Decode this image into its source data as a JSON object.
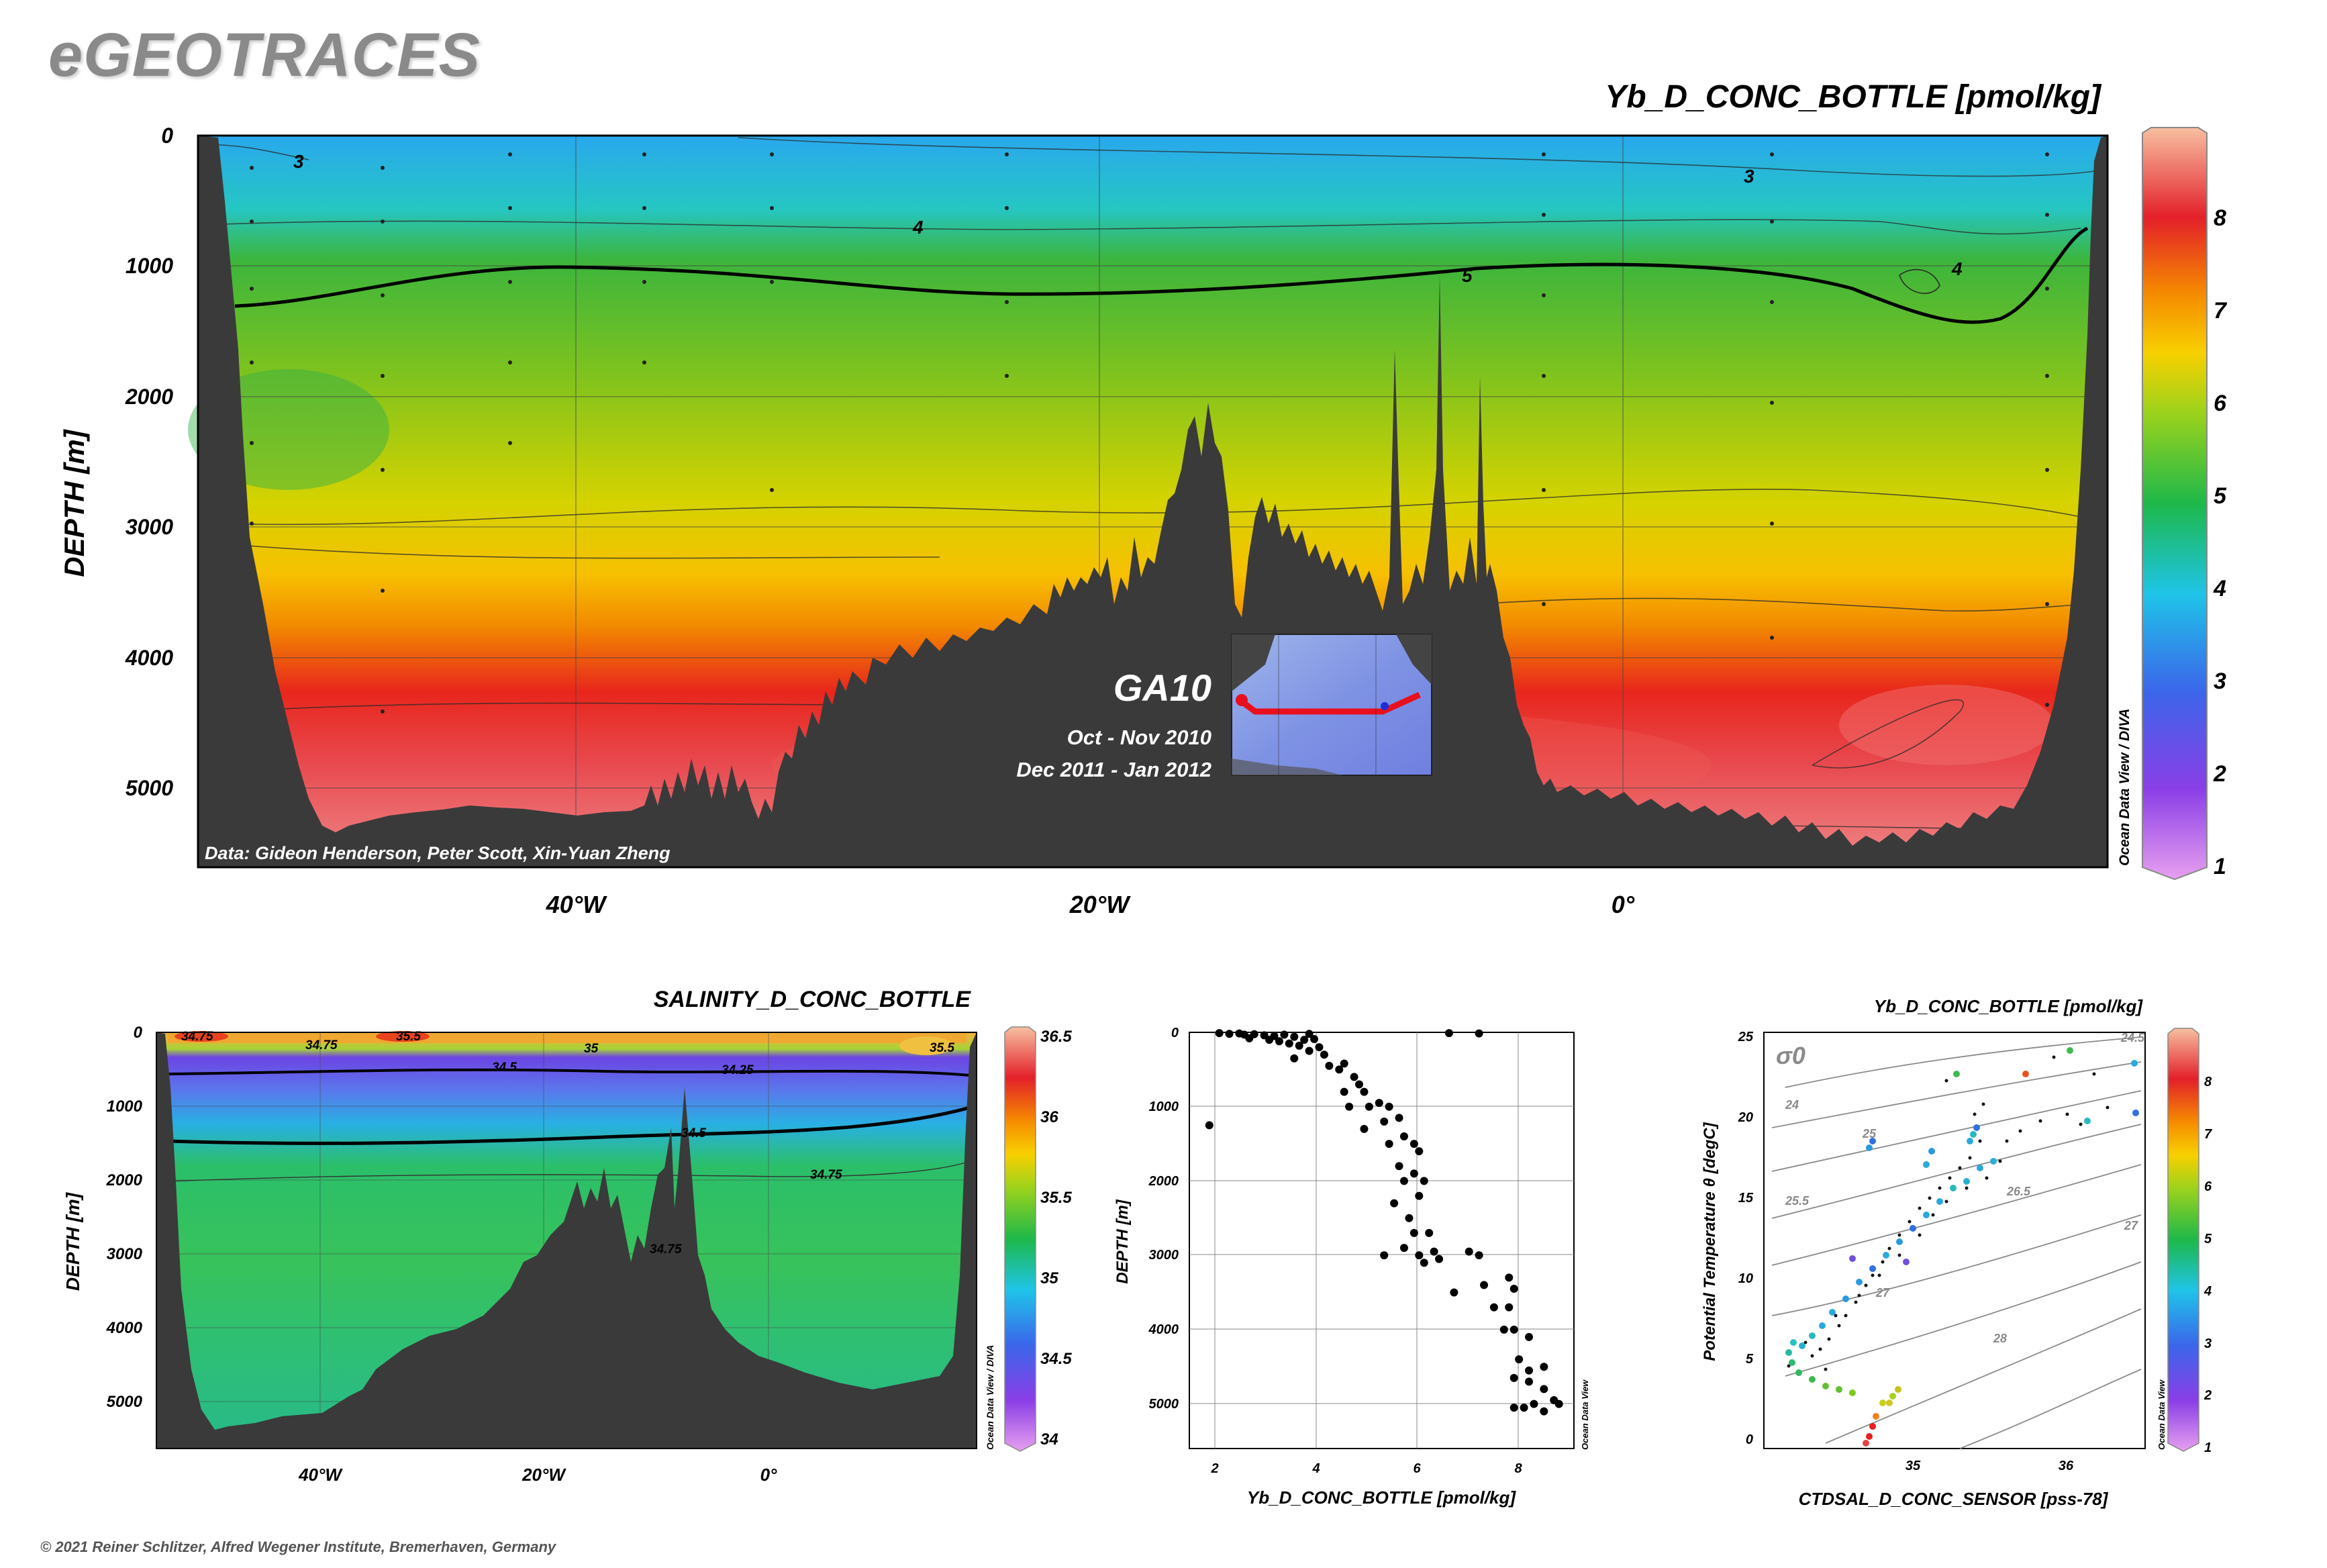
{
  "brand": "eGEOTRACES",
  "copyright": "© 2021 Reiner Schlitzer, Alfred Wegener Institute, Bremerhaven, Germany",
  "chart_data": [
    {
      "type": "heatmap",
      "title": "Yb_D_CONC_BOTTLE [pmol/kg]",
      "ylabel": "DEPTH [m]",
      "x_ticks": [
        "40°W",
        "20°W",
        "0°"
      ],
      "y_ticks": [
        "0",
        "1000",
        "2000",
        "3000",
        "4000",
        "5000"
      ],
      "ylim": [
        0,
        5600
      ],
      "colorbar_ticks": [
        "1",
        "2",
        "3",
        "4",
        "5",
        "6",
        "7",
        "8"
      ],
      "contour_labels": [
        "3",
        "3",
        "4",
        "4",
        "5"
      ],
      "cruise": "GA10",
      "cruise_dates": [
        "Oct - Nov 2010",
        "Dec 2011 - Jan 2012"
      ],
      "data_credit": "Data: Gideon Henderson, Peter Scott, Xin-Yuan Zheng",
      "software_credit": "Ocean Data View / DIVA"
    },
    {
      "type": "heatmap",
      "title": "SALINITY_D_CONC_BOTTLE",
      "ylabel": "DEPTH [m]",
      "x_ticks": [
        "40°W",
        "20°W",
        "0°"
      ],
      "y_ticks": [
        "0",
        "1000",
        "2000",
        "3000",
        "4000",
        "5000"
      ],
      "colorbar_ticks": [
        "34",
        "34.5",
        "35",
        "35.5",
        "36",
        "36.5"
      ],
      "contour_labels": [
        "34.75",
        "34.75",
        "35",
        "34.5",
        "34.25",
        "34.5",
        "34.75",
        "34.75",
        "35.5",
        "35.5"
      ],
      "software_credit": "Ocean Data View / DIVA"
    },
    {
      "type": "scatter",
      "xlabel": "Yb_D_CONC_BOTTLE [pmol/kg]",
      "ylabel": "DEPTH [m]",
      "x_ticks": [
        "2",
        "4",
        "6",
        "8"
      ],
      "y_ticks": [
        "0",
        "1000",
        "2000",
        "3000",
        "4000",
        "5000"
      ],
      "xlim": [
        1.5,
        9.2
      ],
      "ylim": [
        0,
        5600
      ],
      "software_credit": "Ocean Data View",
      "points": [
        [
          2.1,
          10
        ],
        [
          2.3,
          20
        ],
        [
          2.5,
          15
        ],
        [
          2.6,
          30
        ],
        [
          2.8,
          25
        ],
        [
          3.0,
          40
        ],
        [
          3.2,
          50
        ],
        [
          3.4,
          30
        ],
        [
          3.6,
          60
        ],
        [
          3.9,
          20
        ],
        [
          2.7,
          80
        ],
        [
          3.1,
          100
        ],
        [
          3.3,
          120
        ],
        [
          3.5,
          150
        ],
        [
          3.8,
          100
        ],
        [
          4.0,
          90
        ],
        [
          4.1,
          200
        ],
        [
          3.9,
          250
        ],
        [
          3.7,
          180
        ],
        [
          4.2,
          300
        ],
        [
          3.6,
          350
        ],
        [
          4.3,
          450
        ],
        [
          4.5,
          500
        ],
        [
          4.6,
          420
        ],
        [
          4.8,
          600
        ],
        [
          4.9,
          700
        ],
        [
          5.0,
          800
        ],
        [
          4.6,
          800
        ],
        [
          4.7,
          1000
        ],
        [
          5.1,
          1000
        ],
        [
          5.3,
          950
        ],
        [
          5.5,
          1000
        ],
        [
          5.7,
          1150
        ],
        [
          5.4,
          1200
        ],
        [
          5.0,
          1300
        ],
        [
          5.8,
          1400
        ],
        [
          5.5,
          1500
        ],
        [
          6.0,
          1500
        ],
        [
          6.1,
          1600
        ],
        [
          5.7,
          1800
        ],
        [
          6.0,
          1900
        ],
        [
          5.8,
          2000
        ],
        [
          6.2,
          2000
        ],
        [
          6.1,
          2200
        ],
        [
          5.6,
          2300
        ],
        [
          5.9,
          2500
        ],
        [
          6.0,
          2700
        ],
        [
          6.3,
          2700
        ],
        [
          5.8,
          2900
        ],
        [
          6.4,
          2950
        ],
        [
          6.1,
          3000
        ],
        [
          5.4,
          3000
        ],
        [
          7.1,
          2950
        ],
        [
          7.3,
          3000
        ],
        [
          6.5,
          3050
        ],
        [
          6.2,
          3100
        ],
        [
          7.4,
          3400
        ],
        [
          7.9,
          3300
        ],
        [
          8.0,
          3450
        ],
        [
          6.8,
          3500
        ],
        [
          7.6,
          3700
        ],
        [
          7.9,
          3700
        ],
        [
          8.0,
          4000
        ],
        [
          7.8,
          4000
        ],
        [
          8.3,
          4100
        ],
        [
          8.1,
          4400
        ],
        [
          8.6,
          4500
        ],
        [
          8.3,
          4550
        ],
        [
          8.0,
          4650
        ],
        [
          8.3,
          4700
        ],
        [
          8.6,
          4800
        ],
        [
          8.8,
          4950
        ],
        [
          8.4,
          5000
        ],
        [
          8.2,
          5050
        ],
        [
          8.6,
          5100
        ],
        [
          8.0,
          5050
        ],
        [
          8.9,
          5000
        ],
        [
          6.7,
          10
        ],
        [
          7.3,
          15
        ],
        [
          1.9,
          1250
        ]
      ]
    },
    {
      "type": "scatter",
      "title": "Yb_D_CONC_BOTTLE [pmol/kg]",
      "xlabel": "CTDSAL_D_CONC_SENSOR [pss-78]",
      "ylabel": "Potential Temperature θ [degC]",
      "x_ticks": [
        "35",
        "36"
      ],
      "y_ticks": [
        "0",
        "5",
        "10",
        "15",
        "20",
        "25"
      ],
      "xlim": [
        34.0,
        36.5
      ],
      "ylim": [
        -0.5,
        25.5
      ],
      "isopycnal_label": "σ0",
      "isopycnal_ticks": [
        "24",
        "24.5",
        "25",
        "25.5",
        "26.5",
        "27",
        "27",
        "28"
      ],
      "colorbar_ticks": [
        "1",
        "2",
        "3",
        "4",
        "5",
        "6",
        "7",
        "8"
      ],
      "software_credit": "Ocean Data View"
    }
  ]
}
